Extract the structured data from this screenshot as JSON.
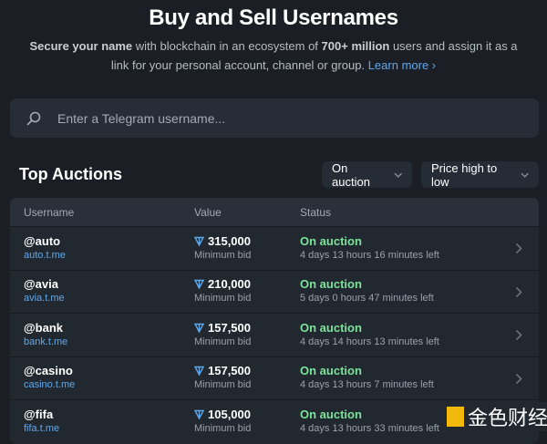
{
  "header": {
    "title": "Buy and Sell Usernames",
    "subtitle_bold1": "Secure your name",
    "subtitle_text1": " with blockchain in an ecosystem of ",
    "subtitle_bold2": "700+ million",
    "subtitle_text2": " users and assign it as a link for your personal account, channel or group. ",
    "learn_more": "Learn more ›"
  },
  "search": {
    "placeholder": "Enter a Telegram username...",
    "value": "",
    "icon": "search-icon"
  },
  "section_title": "Top Auctions",
  "filters": {
    "status": "On auction",
    "sort": "Price high to low"
  },
  "table": {
    "columns": [
      "Username",
      "Value",
      "Status"
    ],
    "rows": [
      {
        "username": "@auto",
        "link": "auto.t.me",
        "value": "315,000",
        "value_label": "Minimum bid",
        "status": "On auction",
        "time": "4 days 13 hours 16 minutes left"
      },
      {
        "username": "@avia",
        "link": "avia.t.me",
        "value": "210,000",
        "value_label": "Minimum bid",
        "status": "On auction",
        "time": "5 days 0 hours 47 minutes left"
      },
      {
        "username": "@bank",
        "link": "bank.t.me",
        "value": "157,500",
        "value_label": "Minimum bid",
        "status": "On auction",
        "time": "4 days 14 hours 13 minutes left"
      },
      {
        "username": "@casino",
        "link": "casino.t.me",
        "value": "157,500",
        "value_label": "Minimum bid",
        "status": "On auction",
        "time": "4 days 13 hours 7 minutes left"
      },
      {
        "username": "@fifa",
        "link": "fifa.t.me",
        "value": "105,000",
        "value_label": "Minimum bid",
        "status": "On auction",
        "time": "4 days 13 hours 33 minutes left"
      }
    ]
  },
  "watermark": "金色财经",
  "colors": {
    "background": "#1b1f25",
    "accent": "#5fa8ea",
    "status_green": "#7de39a",
    "ton": "#5fa8ea"
  }
}
